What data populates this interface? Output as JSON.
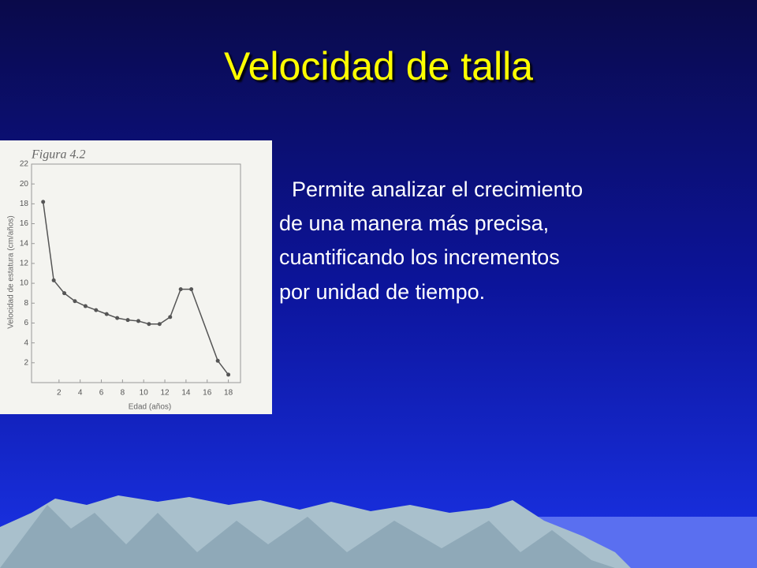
{
  "title": "Velocidad de talla",
  "body": [
    "Permite analizar el crecimiento",
    "de una manera más precisa,",
    "cuantificando los incrementos",
    "por unidad de tiempo."
  ],
  "chart_data": {
    "type": "line",
    "title": "Figura 4.2",
    "x_label": "Edad (años)",
    "y_label": "Velocidad de estatura (cm/años)",
    "x": [
      0.5,
      1.5,
      2.5,
      3.5,
      4.5,
      5.5,
      6.5,
      7.5,
      8.5,
      9.5,
      10.5,
      11.5,
      12.5,
      13.5,
      14.5,
      17,
      18
    ],
    "values": [
      18.2,
      10.3,
      9,
      8.2,
      7.7,
      7.3,
      6.9,
      6.5,
      6.3,
      6.2,
      5.9,
      5.9,
      6.6,
      9.4,
      9.4,
      2.2,
      0.8
    ],
    "color": "#555555",
    "xlim": [
      0,
      19
    ],
    "xticks": [
      2,
      4,
      6,
      8,
      10,
      12,
      14,
      16,
      18
    ],
    "ylim": [
      0,
      22
    ],
    "yticks": [
      2,
      4,
      6,
      8,
      10,
      12,
      14,
      16,
      18,
      20,
      22
    ]
  }
}
